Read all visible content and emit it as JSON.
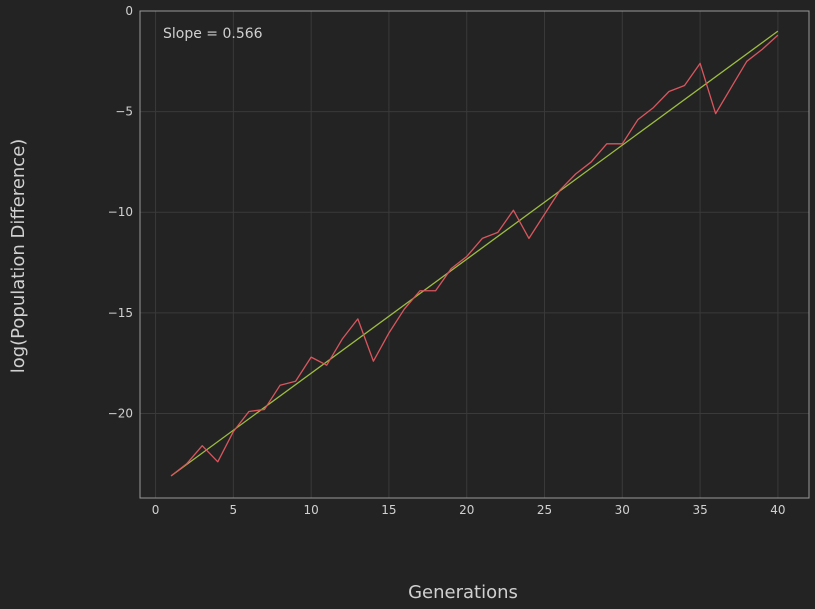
{
  "chart_data": {
    "type": "line",
    "xlabel": "Generations",
    "ylabel": "log(Population Difference)",
    "xlim": [
      -1,
      42
    ],
    "ylim": [
      -24.2,
      0
    ],
    "xticks": [
      0,
      5,
      10,
      15,
      20,
      25,
      30,
      35,
      40
    ],
    "yticks": [
      0,
      -5,
      -10,
      -15,
      -20
    ],
    "grid": true,
    "annotation": "Slope = 0.566",
    "colors": {
      "background": "#232323",
      "grid": "#3a3a3a",
      "spine": "#9a9a9a",
      "text": "#d0d0d0",
      "data_line": "#d9565e",
      "fit_line": "#9cbd42"
    },
    "series": [
      {
        "x": [
          1,
          2,
          3,
          4,
          5,
          6,
          7,
          8,
          9,
          10,
          11,
          12,
          13,
          14,
          15,
          16,
          17,
          18,
          19,
          20,
          21,
          22,
          23,
          24,
          25,
          26,
          27,
          28,
          29,
          30,
          31,
          32,
          33,
          34,
          35,
          36,
          37,
          38,
          39,
          40
        ],
        "values": [
          -23.1,
          -22.5,
          -21.6,
          -22.4,
          -20.9,
          -19.9,
          -19.8,
          -18.6,
          -18.4,
          -17.2,
          -17.6,
          -16.3,
          -15.3,
          -17.4,
          -16.0,
          -14.8,
          -13.9,
          -13.9,
          -12.8,
          -12.2,
          -11.3,
          -11.0,
          -9.9,
          -11.3,
          -10.1,
          -8.9,
          -8.1,
          -7.5,
          -6.6,
          -6.6,
          -5.4,
          -4.8,
          -4.0,
          -3.7,
          -2.6,
          -5.1,
          -3.8,
          -2.5,
          -1.9,
          -1.2
        ]
      },
      {
        "x": [
          1,
          40
        ],
        "values": [
          -23.1,
          -1.0
        ]
      }
    ]
  }
}
